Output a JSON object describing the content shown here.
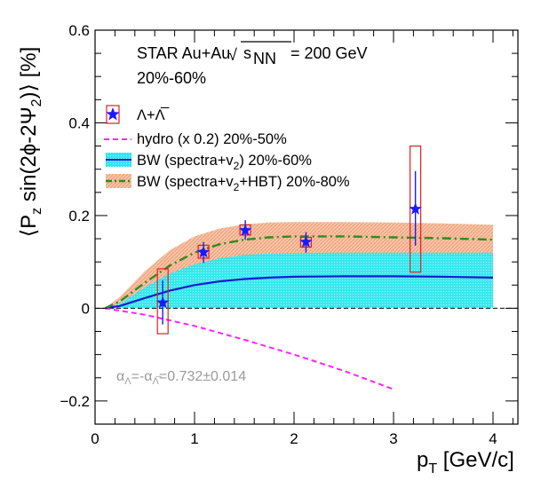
{
  "chart_data": {
    "type": "line",
    "xlim": [
      0,
      4.25
    ],
    "ylim": [
      -0.25,
      0.6
    ],
    "x_ticks": [
      0,
      1,
      2,
      3,
      4
    ],
    "y_ticks": [
      -0.2,
      0,
      0.2,
      0.4,
      0.6
    ],
    "x_tick_labels": [
      "0",
      "1",
      "2",
      "3",
      "4"
    ],
    "y_tick_labels": [
      "−0.2",
      "0",
      "0.2",
      "0.4",
      "0.6"
    ],
    "xlabel": "p",
    "xlabel_sub": "T",
    "xlabel_unit": " [GeV/c]",
    "ylabel": "⟨P",
    "ylabel_sub_z": "z",
    "ylabel_mid": " sin(2ϕ-2Ψ",
    "ylabel_sub_2": "2",
    "ylabel_end": ")⟩ [%]",
    "header": {
      "line1": "STAR Au+Au",
      "sqrt_symbol": "√",
      "s": "s",
      "nn": "NN",
      "energy": " = 200 GeV",
      "line2": "20%-60%"
    },
    "legend": [
      {
        "key": "data",
        "label": "Λ+Λ̅"
      },
      {
        "key": "hydro",
        "label": "hydro (x 0.2) 20%-50%"
      },
      {
        "key": "bw1",
        "label_a": "BW (spectra+v",
        "label_sub": "2",
        "label_b": ") 20%-60%"
      },
      {
        "key": "bw2",
        "label_a": "BW (spectra+v",
        "label_sub": "2",
        "label_b": "+HBT) 20%-80%"
      }
    ],
    "annotation": {
      "a": "α",
      "a_sub": "Λ",
      "mid": "=-α",
      "b_sub": "Λ̅",
      "value": "=0.732±0.014"
    },
    "colors": {
      "data": "#1a1aff",
      "syst": "#e02020",
      "hydro": "#ff22ff",
      "bw1_line": "#1a1acc",
      "bw1_band": "#00e5ee",
      "bw2_band": "#f5b898",
      "bw2_line": "#2e8b20"
    },
    "data_points": [
      {
        "x": 0.68,
        "y": 0.012,
        "stat_lo": -0.035,
        "stat_hi": 0.06,
        "syst_lo": -0.055,
        "syst_hi": 0.085
      },
      {
        "x": 1.09,
        "y": 0.121,
        "stat_lo": 0.098,
        "stat_hi": 0.143,
        "syst_lo": 0.108,
        "syst_hi": 0.136
      },
      {
        "x": 1.51,
        "y": 0.168,
        "stat_lo": 0.148,
        "stat_hi": 0.19,
        "syst_lo": 0.158,
        "syst_hi": 0.18
      },
      {
        "x": 2.12,
        "y": 0.143,
        "stat_lo": 0.12,
        "stat_hi": 0.164,
        "syst_lo": 0.132,
        "syst_hi": 0.153
      },
      {
        "x": 3.22,
        "y": 0.214,
        "stat_lo": 0.135,
        "stat_hi": 0.296,
        "syst_lo": 0.078,
        "syst_hi": 0.35
      }
    ],
    "hydro": {
      "x": [
        0.1,
        0.5,
        1.0,
        1.5,
        2.0,
        2.5,
        3.0
      ],
      "y": [
        0.0,
        -0.014,
        -0.038,
        -0.068,
        -0.1,
        -0.135,
        -0.175
      ]
    },
    "bw1": {
      "x": [
        0.1,
        0.25,
        0.5,
        0.75,
        1.0,
        1.25,
        1.5,
        1.75,
        2.0,
        2.5,
        3.0,
        3.5,
        4.0
      ],
      "center": [
        0.0,
        0.005,
        0.022,
        0.038,
        0.05,
        0.058,
        0.063,
        0.066,
        0.068,
        0.069,
        0.069,
        0.068,
        0.066
      ],
      "lower": [
        0.0,
        0.0,
        0.0,
        0.0,
        0.0,
        0.0,
        0.0,
        0.0,
        0.0,
        0.0,
        0.0,
        0.0,
        0.0
      ],
      "upper": [
        0.0,
        0.01,
        0.045,
        0.075,
        0.095,
        0.108,
        0.115,
        0.118,
        0.119,
        0.12,
        0.12,
        0.12,
        0.12
      ]
    },
    "bw2": {
      "x": [
        0.1,
        0.25,
        0.5,
        0.75,
        1.0,
        1.25,
        1.5,
        1.75,
        2.0,
        2.5,
        3.0,
        3.5,
        4.0
      ],
      "center": [
        0.0,
        0.015,
        0.055,
        0.092,
        0.12,
        0.138,
        0.148,
        0.153,
        0.155,
        0.155,
        0.153,
        0.151,
        0.148
      ],
      "lower": [
        0.0,
        0.01,
        0.035,
        0.06,
        0.082,
        0.097,
        0.105,
        0.11,
        0.112,
        0.113,
        0.113,
        0.113,
        0.112
      ],
      "upper": [
        0.0,
        0.025,
        0.08,
        0.125,
        0.155,
        0.172,
        0.181,
        0.185,
        0.186,
        0.186,
        0.185,
        0.183,
        0.18
      ]
    }
  }
}
